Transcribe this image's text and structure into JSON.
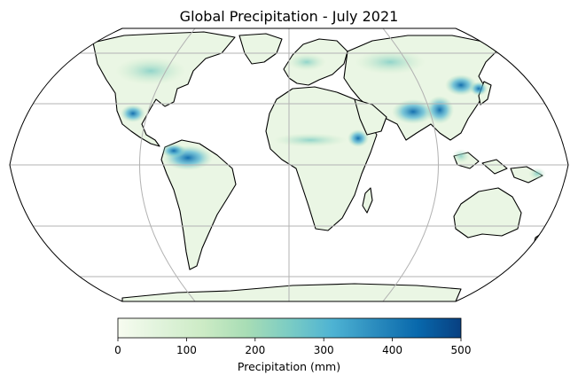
{
  "title": "Global Precipitation - July 2021",
  "map": {
    "projection": "Robinson",
    "gridlines": true,
    "coastlines": true,
    "grid_color": "#b3b3b3",
    "coastline_color": "#000000",
    "land_base_color": "#f7fcf0",
    "ocean_color": "#ffffff"
  },
  "colorbar": {
    "label": "Precipitation (mm)",
    "ticks": [
      "0",
      "100",
      "200",
      "300",
      "400",
      "500"
    ],
    "min": 0,
    "max": 500,
    "colormap": "GnBu",
    "colors": [
      "#f7fcf0",
      "#e0f3db",
      "#ccebc5",
      "#a8ddb5",
      "#7bccc4",
      "#4eb3d3",
      "#2b8cbe",
      "#0868ac",
      "#084081"
    ]
  }
}
